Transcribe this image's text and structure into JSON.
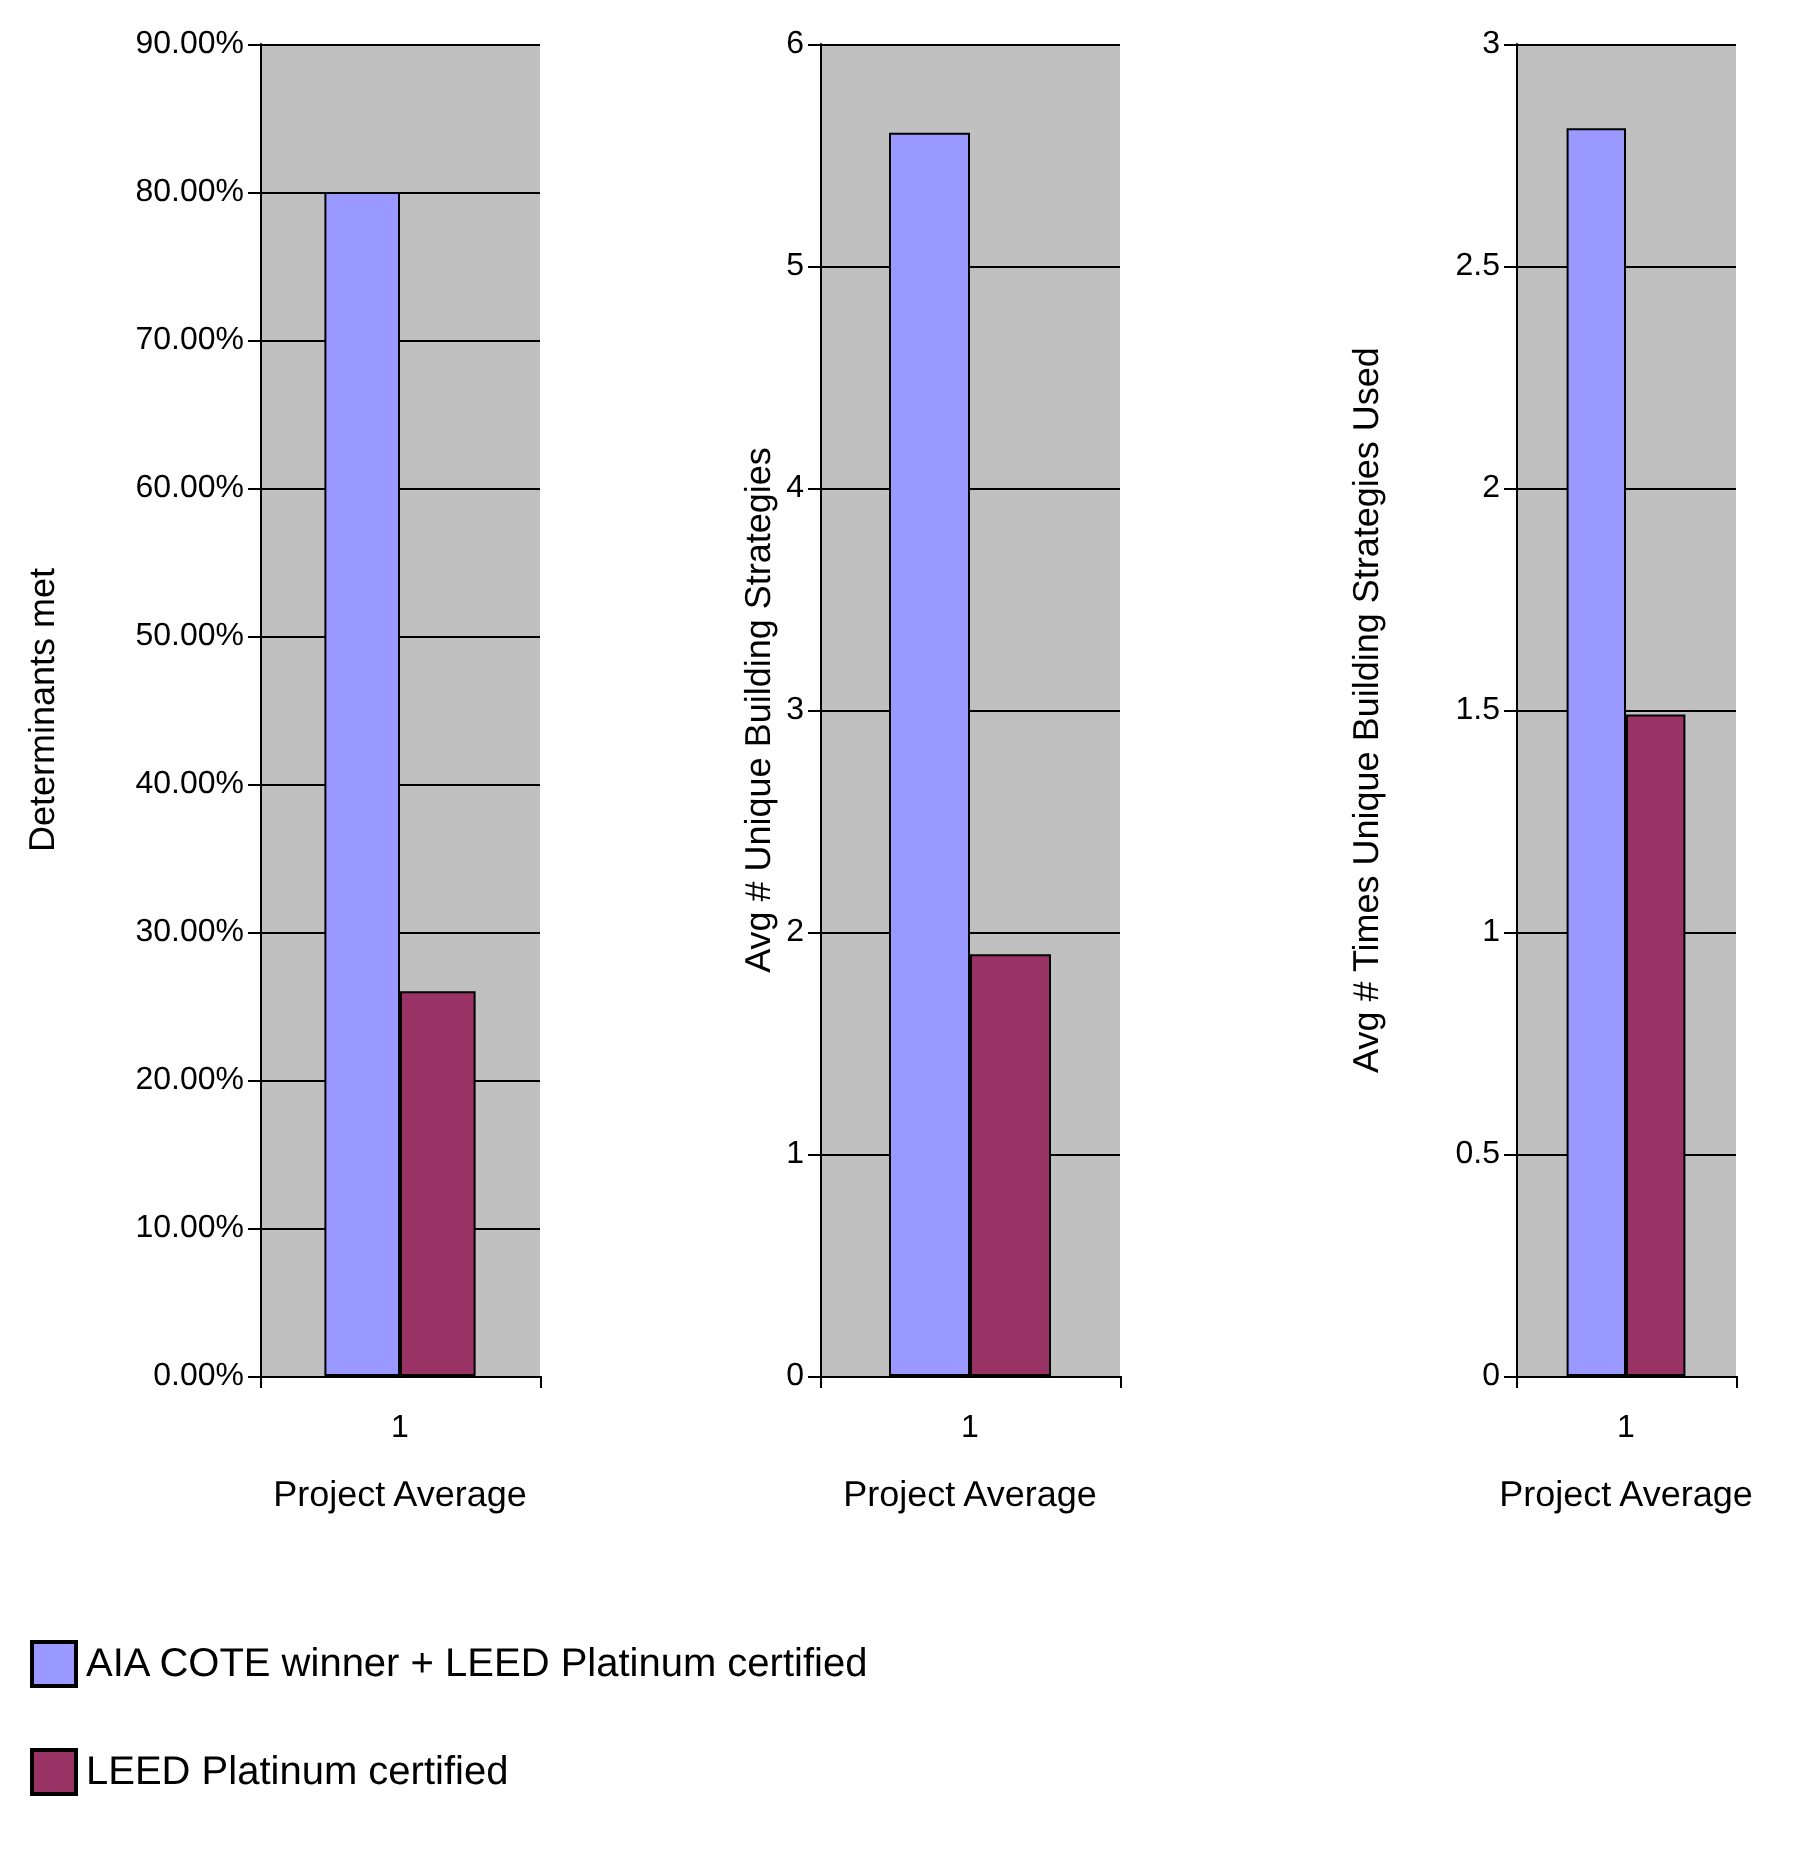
{
  "chart_data": [
    {
      "type": "bar",
      "categories": [
        "1"
      ],
      "xlabel": "Project Average",
      "ylabel": "Determinants met",
      "ylim": [
        0,
        90
      ],
      "yticks": [
        {
          "value": 0,
          "label": "0.00%"
        },
        {
          "value": 10,
          "label": "10.00%"
        },
        {
          "value": 20,
          "label": "20.00%"
        },
        {
          "value": 30,
          "label": "30.00%"
        },
        {
          "value": 40,
          "label": "40.00%"
        },
        {
          "value": 50,
          "label": "50.00%"
        },
        {
          "value": 60,
          "label": "60.00%"
        },
        {
          "value": 70,
          "label": "70.00%"
        },
        {
          "value": 80,
          "label": "80.00%"
        },
        {
          "value": 90,
          "label": "90.00%"
        }
      ],
      "grid": "y",
      "legend": "bottom",
      "series": [
        {
          "name": "AIA COTE winner + LEED Platinum certified",
          "color": "#9999ff",
          "values": [
            80
          ]
        },
        {
          "name": "LEED Platinum certified",
          "color": "#993366",
          "values": [
            26
          ]
        }
      ]
    },
    {
      "type": "bar",
      "categories": [
        "1"
      ],
      "xlabel": "Project Average",
      "ylabel": "Avg # Unique Building Strategies",
      "ylim": [
        0,
        6
      ],
      "yticks": [
        0,
        1,
        2,
        3,
        4,
        5,
        6
      ],
      "grid": "y",
      "series": [
        {
          "color": "#9999ff",
          "values": [
            5.6
          ]
        },
        {
          "color": "#993366",
          "values": [
            1.9
          ]
        }
      ]
    },
    {
      "type": "bar",
      "categories": [
        "1"
      ],
      "xlabel": "Project Average",
      "ylabel": "Avg # Times Unique Building Strategies Used",
      "ylim": [
        0,
        3
      ],
      "yticks": [
        0,
        0.5,
        1,
        1.5,
        2,
        2.5,
        3
      ],
      "grid": "y",
      "series": [
        {
          "color": "#9999ff",
          "values": [
            2.81
          ]
        },
        {
          "color": "#993366",
          "values": [
            1.49
          ]
        }
      ]
    }
  ]
}
